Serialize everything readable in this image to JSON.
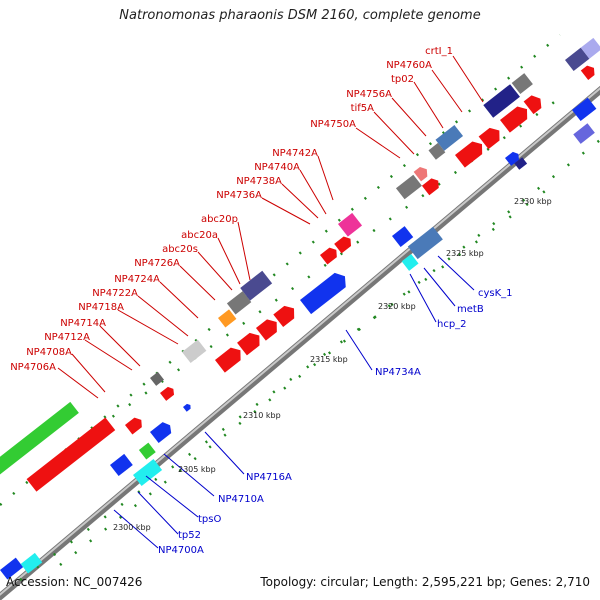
{
  "title": "Natronomonas pharaonis DSM 2160, complete genome",
  "footer": {
    "accession": "Accession: NC_007426",
    "summary": "Topology: circular; Length: 2,595,221 bp; Genes: 2,710"
  },
  "colors": {
    "backbone": "#8a8a8a",
    "red_label": "#cc0000",
    "blue_label": "#0000cc",
    "tick": "#228822",
    "red": "#ee1111",
    "blue": "#1133ee",
    "green": "#33cc33",
    "cyan": "#22eeee",
    "gray": "#888888",
    "silver": "#cccccc",
    "navy": "#222288",
    "slate": "#4a4a90",
    "steel": "#4a7ab8",
    "pink": "#ee3399",
    "orange": "#ff9922",
    "salmon": "#ee7777"
  },
  "scale_labels": [
    {
      "text": "2300 kbp"
    },
    {
      "text": "2305 kbp"
    },
    {
      "text": "2310 kbp"
    },
    {
      "text": "2315 kbp"
    },
    {
      "text": "2320 kbp"
    },
    {
      "text": "2325 kbp"
    },
    {
      "text": "2330 kbp"
    }
  ],
  "upper_labels": [
    "crtI_1",
    "NP4760A",
    "tp02",
    "NP4756A",
    "tif5A",
    "NP4750A",
    "NP4742A",
    "NP4740A",
    "NP4738A",
    "NP4736A",
    "abc20p",
    "abc20a",
    "abc20s",
    "NP4726A",
    "NP4724A",
    "NP4722A",
    "NP4718A",
    "NP4714A",
    "NP4712A",
    "NP4708A",
    "NP4706A"
  ],
  "lower_labels": [
    "cysK_1",
    "metB",
    "hcp_2",
    "NP4734A",
    "NP4716A",
    "NP4710A",
    "tpsO",
    "tp52",
    "NP4700A"
  ]
}
